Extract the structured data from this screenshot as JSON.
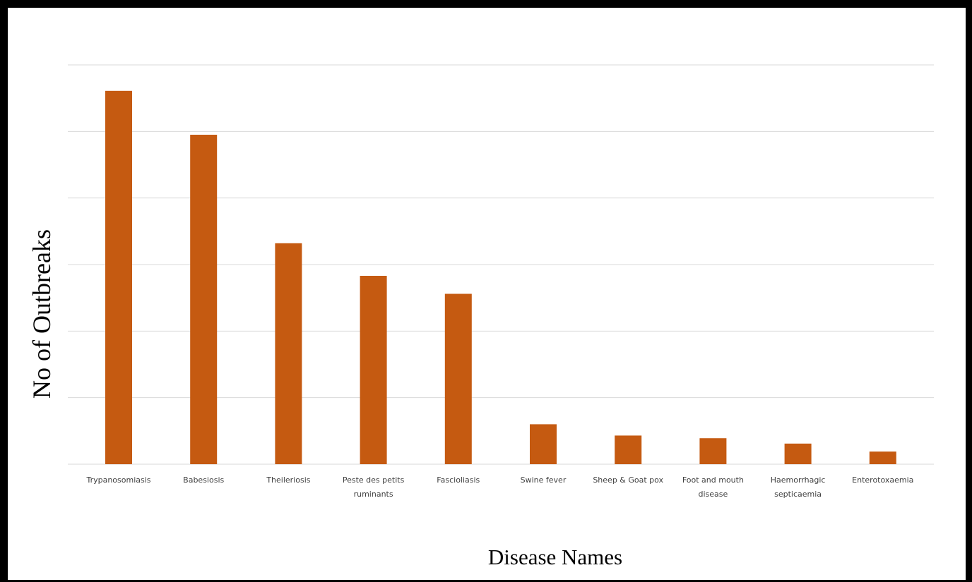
{
  "chart_data": {
    "type": "bar",
    "title": "",
    "xlabel": "Disease Names",
    "ylabel": "No of Outbreaks",
    "categories": [
      [
        "Trypanosomiasis"
      ],
      [
        "Babesiosis"
      ],
      [
        "Theileriosis"
      ],
      [
        "Peste des petits",
        "ruminants"
      ],
      [
        "Fascioliasis"
      ],
      [
        "Swine fever"
      ],
      [
        "Sheep & Goat pox"
      ],
      [
        "Foot and mouth",
        "disease"
      ],
      [
        "Haemorrhagic",
        "septicaemia"
      ],
      [
        "Enterotoxaemia"
      ]
    ],
    "values": [
      5.61,
      4.95,
      3.32,
      2.83,
      2.56,
      0.6,
      0.43,
      0.39,
      0.31,
      0.19
    ],
    "ylim": [
      0,
      6
    ],
    "gridlines": [
      0,
      1,
      2,
      3,
      4,
      5,
      6
    ],
    "grid": true,
    "y_tick_labels_shown": false,
    "legend": "none",
    "colors": {
      "bar": "#c55a11",
      "grid": "#d9d9d9",
      "frame": "#000000"
    }
  }
}
